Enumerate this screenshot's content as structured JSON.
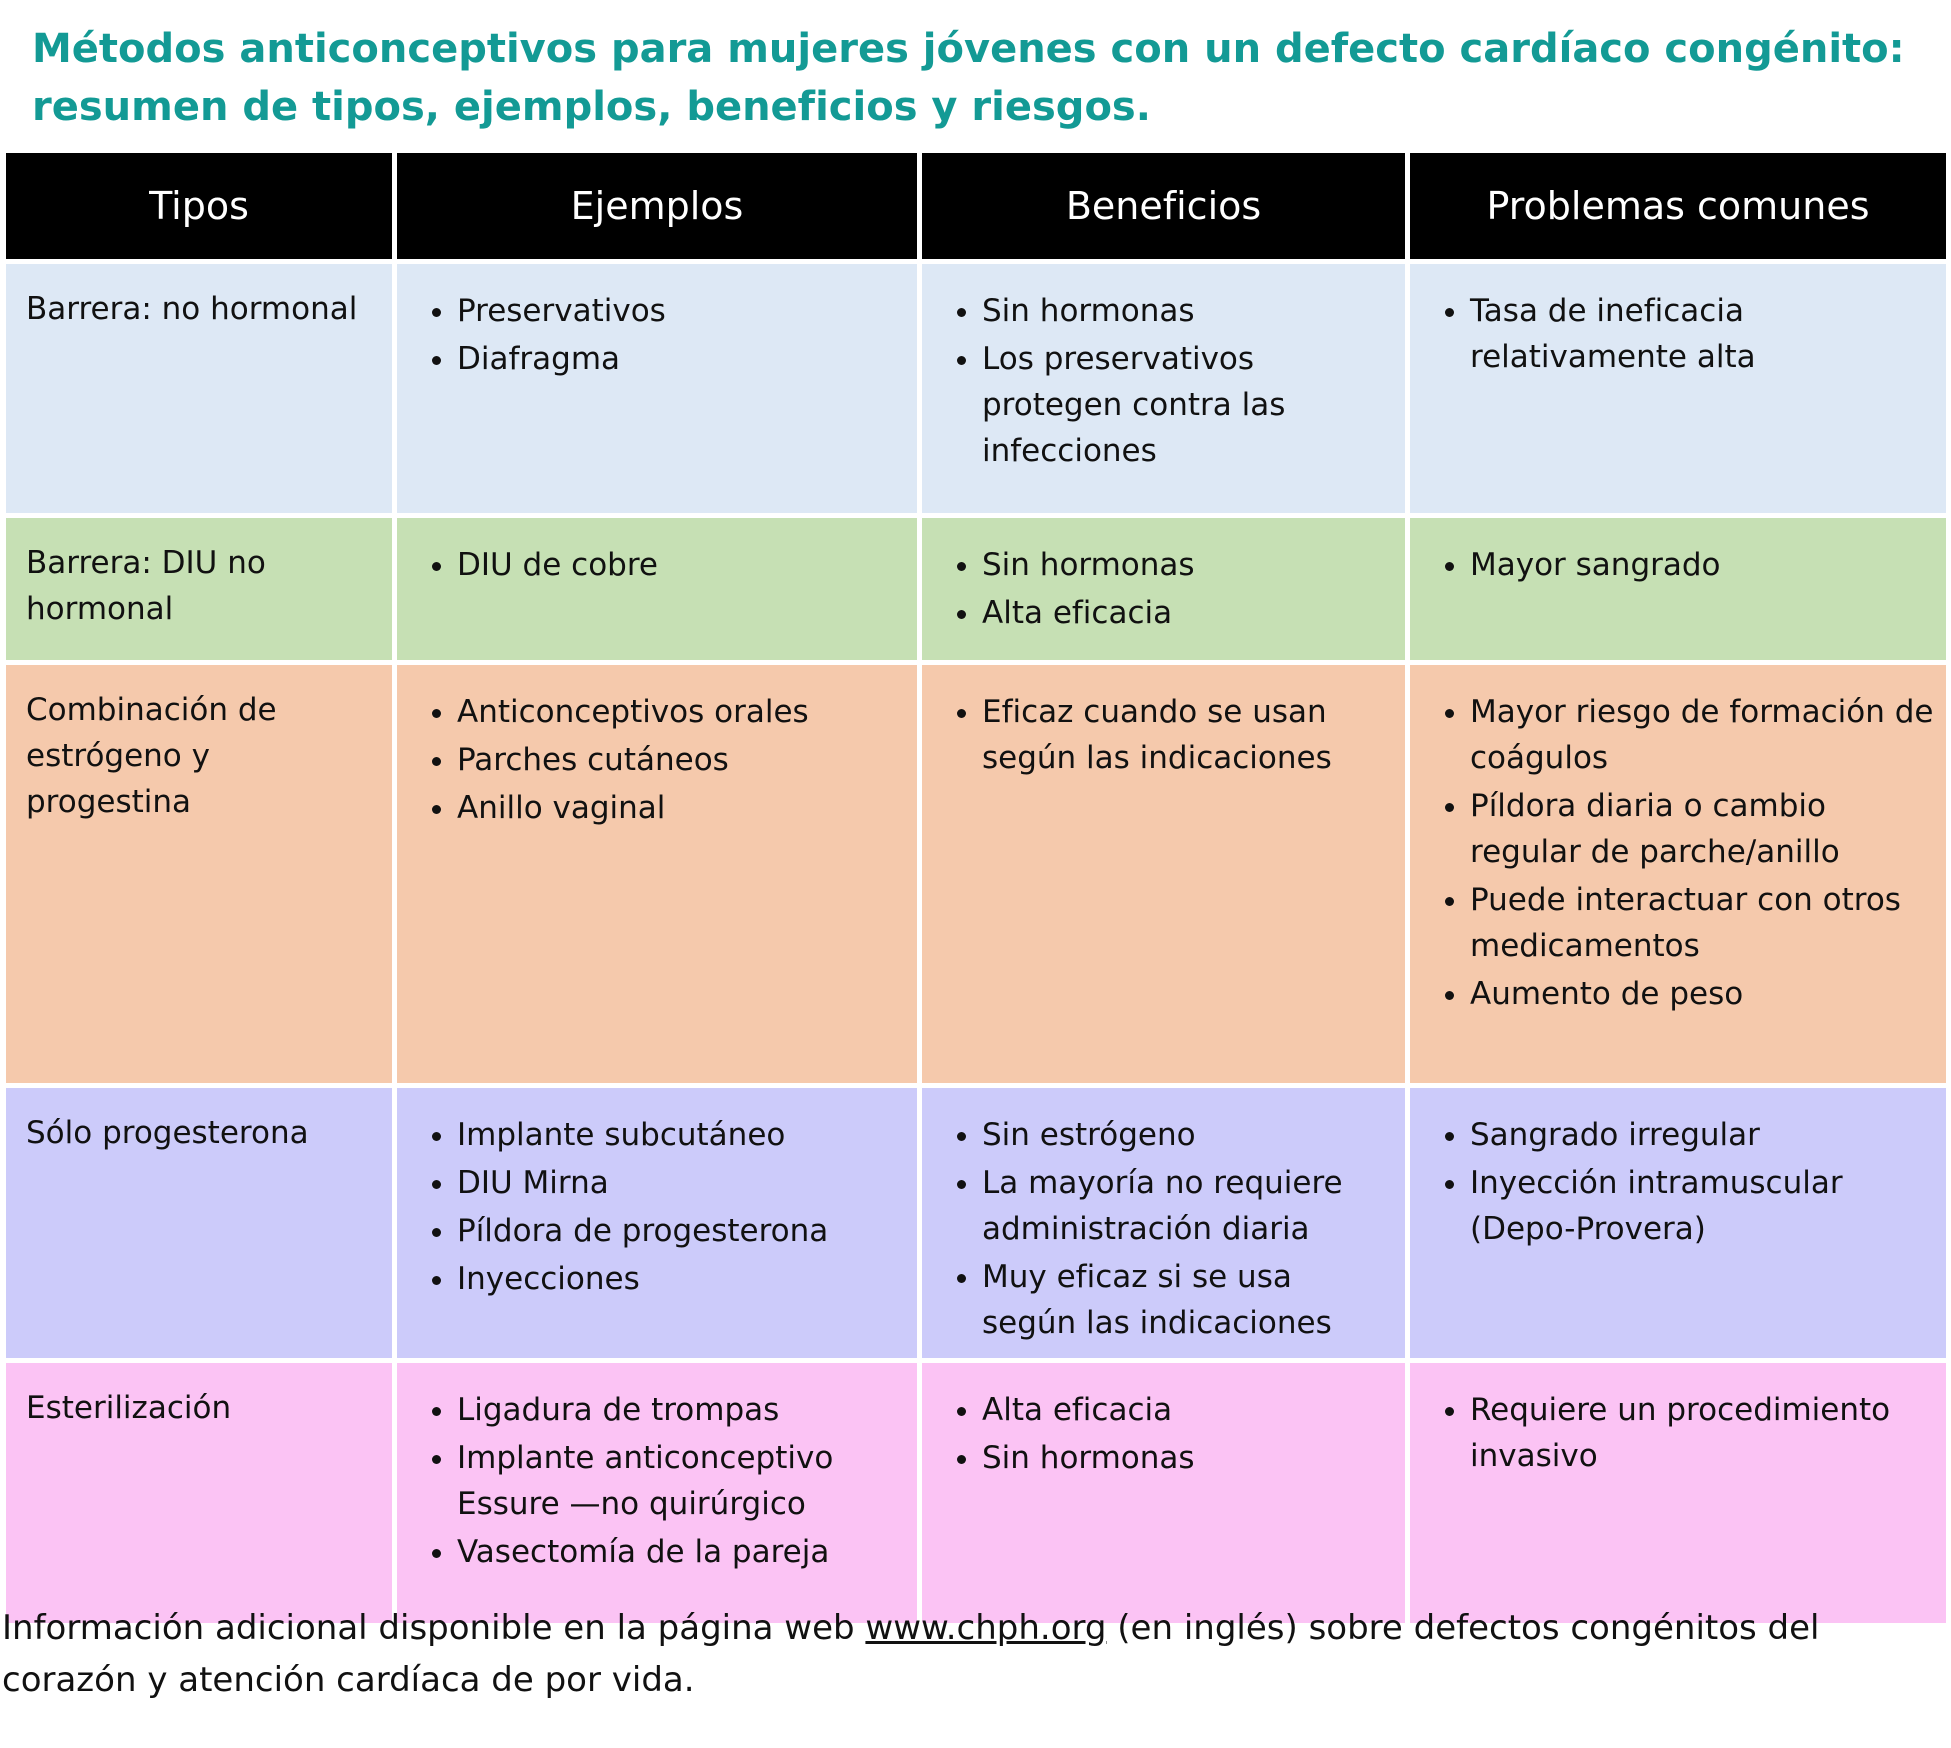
{
  "title": [
    "Métodos anticonceptivos para mujeres jóvenes con un defecto cardíaco congénito:",
    "resumen de tipos, ejemplos, beneficios y riesgos."
  ],
  "table": {
    "header": [
      "Tipos",
      "Ejemplos",
      "Beneficios",
      "Problemas comunes"
    ],
    "rows": [
      {
        "type": "Barrera: no hormonal",
        "examples": [
          "Preservativos",
          "Diafragma"
        ],
        "benefits": [
          "Sin hormonas",
          "Los preservativos protegen contra las infecciones"
        ],
        "problems": [
          "Tasa de ineficacia relativamente alta"
        ]
      },
      {
        "type": "Barrera: DIU no hormonal",
        "examples": [
          "DIU de cobre"
        ],
        "benefits": [
          "Sin hormonas",
          "Alta eficacia"
        ],
        "problems": [
          "Mayor sangrado"
        ]
      },
      {
        "type": "Combinación de estrógeno y progestina",
        "examples": [
          "Anticonceptivos orales",
          "Parches cutáneos",
          "Anillo vaginal"
        ],
        "benefits": [
          "Eficaz cuando se usan según las indicaciones"
        ],
        "problems": [
          "Mayor riesgo de formación de coágulos",
          "Píldora diaria o cambio regular de parche/anillo",
          "Puede interactuar con otros medicamentos",
          "Aumento de peso"
        ]
      },
      {
        "type": "Sólo progesterona",
        "examples": [
          "Implante subcutáneo",
          "DIU Mirna",
          "Píldora de progesterona",
          "Inyecciones"
        ],
        "benefits": [
          "Sin estrógeno",
          "La mayoría no requiere administración diaria",
          "Muy eficaz si se usa según las indicaciones"
        ],
        "problems": [
          "Sangrado irregular",
          "Inyección intramuscular (Depo-Provera)"
        ]
      },
      {
        "type": "Esterilización",
        "examples": [
          "Ligadura de trompas",
          "Implante anticonceptivo Essure —no quirúrgico",
          "Vasectomía de la pareja"
        ],
        "benefits": [
          "Alta eficacia",
          "Sin hormonas"
        ],
        "problems": [
          "Requiere un procedimiento invasivo"
        ]
      }
    ]
  },
  "footer": {
    "before": "Información adicional disponible en la página web",
    "link": "www.chph.org",
    "after": "(en inglés) sobre defectos congénitos del corazón y atención cardíaca de por vida."
  }
}
